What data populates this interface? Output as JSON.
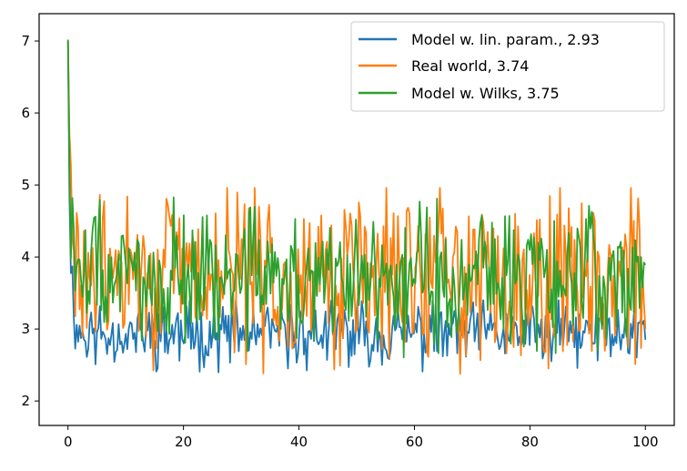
{
  "chart_data": {
    "type": "line",
    "title": "",
    "xlabel": "",
    "ylabel": "",
    "xlim": [
      -5,
      105
    ],
    "ylim": [
      1.66,
      7.38
    ],
    "x_ticks": [
      0,
      20,
      40,
      60,
      80,
      100
    ],
    "x_tick_labels": [
      "0",
      "20",
      "40",
      "60",
      "80",
      "100"
    ],
    "y_ticks": [
      2,
      3,
      4,
      5,
      6,
      7
    ],
    "y_tick_labels": [
      "2",
      "3",
      "4",
      "5",
      "6",
      "7"
    ],
    "grid": false,
    "legend_position": "top-right",
    "n_points": 400,
    "x_range": [
      0,
      100
    ],
    "series": [
      {
        "name": "Model w. lin. param., 2.93",
        "color": "#1f77b4",
        "start_value": 7.0,
        "mean": 2.93,
        "min": 2.38,
        "max": 3.4,
        "fluctuation": 0.28
      },
      {
        "name": "Real world, 3.74",
        "color": "#ff7f0e",
        "start_value": 7.0,
        "mean": 3.74,
        "min": 1.92,
        "max": 4.96,
        "fluctuation": 0.72
      },
      {
        "name": "Model w. Wilks, 3.75",
        "color": "#2ca02c",
        "start_value": 7.02,
        "mean": 3.75,
        "min": 2.2,
        "max": 4.9,
        "fluctuation": 0.6
      }
    ]
  }
}
